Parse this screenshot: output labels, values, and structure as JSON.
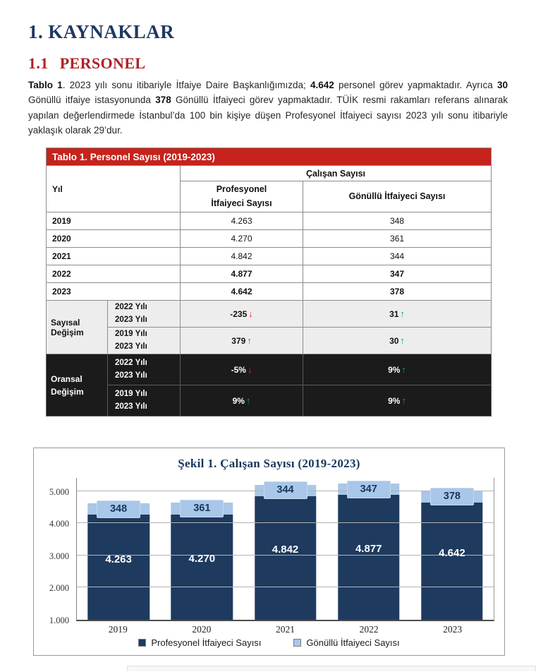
{
  "colors": {
    "heading_blue": "#1F3864",
    "heading_red": "#AF2127",
    "table_red": "#C5231B",
    "navy": "#1E3A5F",
    "light_blue": "#A9C7E8",
    "up_green": "#00B050",
    "down_red": "#FF1A1A"
  },
  "heading1": {
    "number": "1.",
    "text": "KAYNAKLAR"
  },
  "heading2": {
    "number": "1.1",
    "text": "PERSONEL"
  },
  "paragraph": {
    "runs": [
      {
        "text": "Tablo 1",
        "bold": true
      },
      {
        "text": ". 2023 yılı sonu itibariyle İtfaiye Daire Başkanlığımızda; ",
        "bold": false
      },
      {
        "text": "4.642",
        "bold": true
      },
      {
        "text": " personel görev yapmaktadır. Ayrıca ",
        "bold": false
      },
      {
        "text": "30",
        "bold": true
      },
      {
        "text": " Gönüllü itfaiye istasyonunda ",
        "bold": false
      },
      {
        "text": "378",
        "bold": true
      },
      {
        "text": " Gönüllü İtfaiyeci görev yapmaktadır. TÜİK resmi rakamları referans alınarak yapılan değerlendirmede İstanbul’da 100 bin kişiye düşen Profesyonel İtfaiyeci sayısı 2023 yılı sonu itibariyle yaklaşık olarak 29’dur.",
        "bold": false
      }
    ]
  },
  "table": {
    "title": "Tablo 1. Personel Sayısı (2019-2023)",
    "col_group_header": "Çalışan Sayısı",
    "col_headers": [
      "Yıl",
      "Profesyonel İtfaiyeci Sayısı",
      "Gönüllü İtfaiyeci Sayısı"
    ],
    "year_rows": [
      {
        "year": "2019",
        "prof": "4.263",
        "gon": "348",
        "bold": false
      },
      {
        "year": "2020",
        "prof": "4.270",
        "gon": "361",
        "bold": false
      },
      {
        "year": "2021",
        "prof": "4.842",
        "gon": "344",
        "bold": false
      },
      {
        "year": "2022",
        "prof": "4.877",
        "gon": "347",
        "bold": true
      },
      {
        "year": "2023",
        "prof": "4.642",
        "gon": "378",
        "bold": true
      }
    ],
    "sayisal": {
      "label": "Sayısal Değişim",
      "rows": [
        {
          "period": [
            "2022 Yılı",
            "2023 Yılı"
          ],
          "prof": "-235",
          "prof_dir": "down",
          "gon": "31",
          "gon_dir": "up"
        },
        {
          "period": [
            "2019 Yılı",
            "2023 Yılı"
          ],
          "prof": "379",
          "prof_dir": "up",
          "gon": "30",
          "gon_dir": "up"
        }
      ]
    },
    "oransal": {
      "label": "Oransal Değişim",
      "rows": [
        {
          "period": [
            "2022 Yılı",
            "2023 Yılı"
          ],
          "prof": "-5%",
          "prof_dir": "down",
          "gon": "9%",
          "gon_dir": "up"
        },
        {
          "period": [
            "2019 Yılı",
            "2023 Yılı"
          ],
          "prof": "9%",
          "prof_dir": "up",
          "gon": "9%",
          "gon_dir": "up"
        }
      ]
    }
  },
  "chart_data": {
    "type": "bar",
    "stacked": true,
    "title": "Şekil 1. Çalışan Sayısı (2019-2023)",
    "categories": [
      "2019",
      "2020",
      "2021",
      "2022",
      "2023"
    ],
    "series": [
      {
        "name": "Profesyonel İtfaiyeci Sayısı",
        "color": "#1E3A5F",
        "values": [
          4263,
          4270,
          4842,
          4877,
          4642
        ],
        "labels": [
          "4.263",
          "4.270",
          "4.842",
          "4.877",
          "4.642"
        ]
      },
      {
        "name": "Gönüllü İtfaiyeci Sayısı",
        "color": "#A9C7E8",
        "values": [
          348,
          361,
          344,
          347,
          378
        ],
        "labels": [
          "348",
          "361",
          "344",
          "347",
          "378"
        ]
      }
    ],
    "y_ticks": [
      "1.000",
      "2.000",
      "3.000",
      "4.000",
      "5.000"
    ],
    "y_tick_values": [
      1000,
      2000,
      3000,
      4000,
      5000
    ],
    "axis_min": 1000,
    "axis_max": 5450,
    "xlabel": "",
    "ylabel": "",
    "grid": true,
    "legend_position": "bottom"
  }
}
